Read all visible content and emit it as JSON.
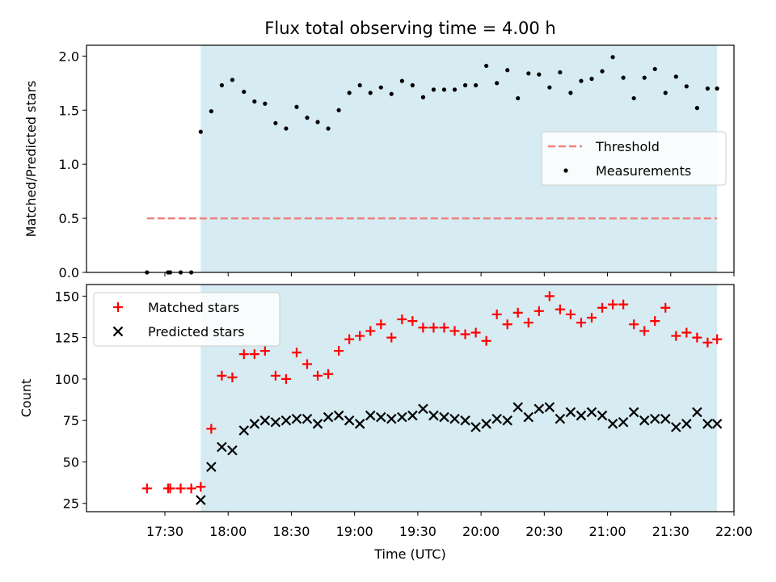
{
  "chart_data": {
    "title": "Flux total observing time = 4.00 h",
    "xlabel": "Time (UTC)",
    "x_unit": "minutes after 17:00 UTC",
    "xlim": [
      -7.2,
      300
    ],
    "xticks": [
      "17:30",
      "18:00",
      "18:30",
      "19:00",
      "19:30",
      "20:00",
      "20:30",
      "21:00",
      "21:30",
      "22:00"
    ],
    "shaded_interval": {
      "start": 47.0,
      "end": 292.0,
      "color": "#add8e6"
    },
    "panels": [
      {
        "type": "scatter",
        "ylabel": "Matched/Predicted stars",
        "ylim": [
          0,
          2.1
        ],
        "yticks": [
          "0.0",
          "0.5",
          "1.0",
          "1.5",
          "2.0"
        ],
        "threshold": {
          "label": "Threshold",
          "value": 0.5,
          "x_range": [
            21.5,
            292.0
          ],
          "color": "#f08080"
        },
        "legend": {
          "position": "center-right",
          "entries": [
            "Threshold",
            "Measurements"
          ]
        },
        "series": [
          {
            "name": "Measurements",
            "color": "#000000",
            "marker": "dot",
            "x": [
              21.5,
              31.5,
              32.5,
              37.5,
              42.5,
              47.0,
              52.0,
              57.0,
              62.0,
              67.5,
              72.5,
              77.5,
              82.5,
              87.5,
              92.5,
              97.5,
              102.5,
              107.5,
              112.5,
              117.5,
              122.5,
              127.5,
              132.5,
              137.5,
              142.5,
              147.5,
              152.5,
              157.5,
              162.5,
              167.5,
              172.5,
              177.5,
              182.5,
              187.5,
              192.5,
              197.5,
              202.5,
              207.5,
              212.5,
              217.5,
              222.5,
              227.5,
              232.5,
              237.5,
              242.5,
              247.5,
              252.5,
              257.5,
              262.5,
              267.5,
              272.5,
              277.5,
              282.5,
              287.5,
              292.0
            ],
            "y": [
              0.0,
              0.0,
              0.0,
              0.0,
              0.0,
              1.3,
              1.49,
              1.73,
              1.78,
              1.67,
              1.58,
              1.56,
              1.38,
              1.33,
              1.53,
              1.43,
              1.39,
              1.33,
              1.5,
              1.66,
              1.73,
              1.66,
              1.71,
              1.65,
              1.77,
              1.73,
              1.62,
              1.69,
              1.69,
              1.69,
              1.73,
              1.73,
              1.91,
              1.75,
              1.87,
              1.61,
              1.84,
              1.83,
              1.71,
              1.85,
              1.66,
              1.77,
              1.79,
              1.86,
              1.99,
              1.8,
              1.61,
              1.8,
              1.88,
              1.66,
              1.81,
              1.72,
              1.52,
              1.7,
              1.7
            ]
          }
        ]
      },
      {
        "type": "scatter",
        "ylabel": "Count",
        "ylim": [
          20,
          157
        ],
        "yticks": [
          "25",
          "50",
          "75",
          "100",
          "125",
          "150"
        ],
        "legend": {
          "position": "top-left",
          "entries": [
            "Matched stars",
            "Predicted stars"
          ]
        },
        "series": [
          {
            "name": "Matched stars",
            "color": "#ff0000",
            "marker": "plus",
            "x": [
              21.5,
              31.5,
              32.5,
              37.5,
              42.5,
              47.0,
              52.0,
              57.0,
              62.0,
              67.5,
              72.5,
              77.5,
              82.5,
              87.5,
              92.5,
              97.5,
              102.5,
              107.5,
              112.5,
              117.5,
              122.5,
              127.5,
              132.5,
              137.5,
              142.5,
              147.5,
              152.5,
              157.5,
              162.5,
              167.5,
              172.5,
              177.5,
              182.5,
              187.5,
              192.5,
              197.5,
              202.5,
              207.5,
              212.5,
              217.5,
              222.5,
              227.5,
              232.5,
              237.5,
              242.5,
              247.5,
              252.5,
              257.5,
              262.5,
              267.5,
              272.5,
              277.5,
              282.5,
              287.5,
              292.0
            ],
            "y": [
              34,
              34,
              34,
              34,
              34,
              35,
              70,
              102,
              101,
              115,
              115,
              117,
              102,
              100,
              116,
              109,
              102,
              103,
              117,
              124,
              126,
              129,
              133,
              125,
              136,
              135,
              131,
              131,
              131,
              129,
              127,
              128,
              123,
              139,
              133,
              140,
              134,
              141,
              150,
              142,
              139,
              134,
              137,
              143,
              145,
              145,
              133,
              129,
              135,
              143,
              126,
              128,
              125,
              122,
              124
            ]
          },
          {
            "name": "Predicted stars",
            "color": "#000000",
            "marker": "x",
            "x": [
              47.0,
              52.0,
              57.0,
              62.0,
              67.5,
              72.5,
              77.5,
              82.5,
              87.5,
              92.5,
              97.5,
              102.5,
              107.5,
              112.5,
              117.5,
              122.5,
              127.5,
              132.5,
              137.5,
              142.5,
              147.5,
              152.5,
              157.5,
              162.5,
              167.5,
              172.5,
              177.5,
              182.5,
              187.5,
              192.5,
              197.5,
              202.5,
              207.5,
              212.5,
              217.5,
              222.5,
              227.5,
              232.5,
              237.5,
              242.5,
              247.5,
              252.5,
              257.5,
              262.5,
              267.5,
              272.5,
              277.5,
              282.5,
              287.5,
              292.0
            ],
            "y": [
              27,
              47,
              59,
              57,
              69,
              73,
              75,
              74,
              75,
              76,
              76,
              73,
              77,
              78,
              75,
              73,
              78,
              77,
              76,
              77,
              78,
              82,
              78,
              77,
              76,
              75,
              71,
              73,
              76,
              75,
              83,
              77,
              82,
              83,
              76,
              80,
              78,
              80,
              78,
              73,
              74,
              80,
              75,
              76,
              76,
              71,
              73,
              80,
              73,
              73
            ]
          }
        ]
      }
    ]
  }
}
